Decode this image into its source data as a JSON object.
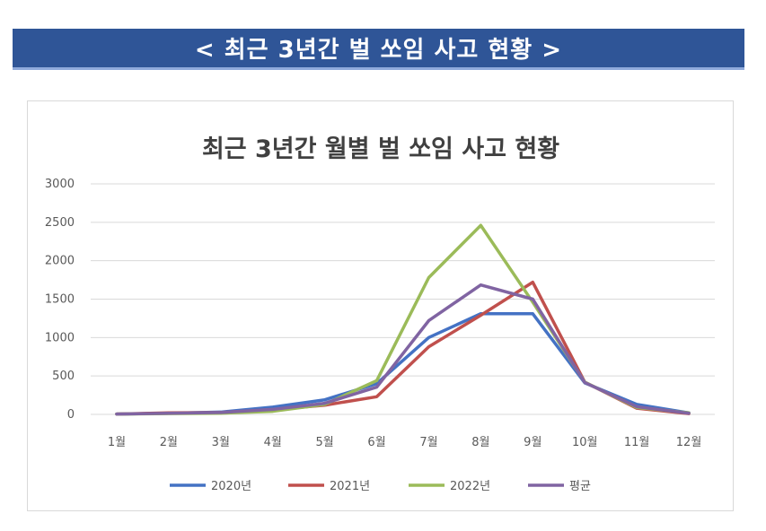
{
  "banner": {
    "title": "< 최근 3년간 벌 쏘임 사고 현황 >"
  },
  "colors": {
    "banner_bg": "#2f5597",
    "series": [
      "#4472c4",
      "#c0504d",
      "#9bbb59",
      "#8064a2"
    ]
  },
  "chart_data": {
    "type": "line",
    "title": "최근 3년간 월별 벌 쏘임 사고 현황",
    "xlabel": "",
    "ylabel": "",
    "categories": [
      "1월",
      "2월",
      "3월",
      "4월",
      "5월",
      "6월",
      "7월",
      "8월",
      "9월",
      "10월",
      "11월",
      "12월"
    ],
    "ylim": [
      0,
      3000
    ],
    "yticks": [
      0,
      500,
      1000,
      1500,
      2000,
      2500,
      3000
    ],
    "grid": true,
    "legend_position": "bottom",
    "series": [
      {
        "name": "2020년",
        "color": "#4472c4",
        "values": [
          5,
          15,
          30,
          95,
          190,
          400,
          1000,
          1310,
          1310,
          410,
          130,
          20
        ]
      },
      {
        "name": "2021년",
        "color": "#c0504d",
        "values": [
          5,
          20,
          25,
          60,
          120,
          230,
          880,
          1290,
          1720,
          420,
          80,
          10
        ]
      },
      {
        "name": "2022년",
        "color": "#9bbb59",
        "values": [
          5,
          10,
          15,
          40,
          130,
          440,
          1780,
          2460,
          1460,
          420,
          90,
          20
        ]
      },
      {
        "name": "평균",
        "color": "#8064a2",
        "values": [
          5,
          15,
          25,
          65,
          145,
          355,
          1220,
          1685,
          1500,
          415,
          100,
          15
        ]
      }
    ]
  }
}
